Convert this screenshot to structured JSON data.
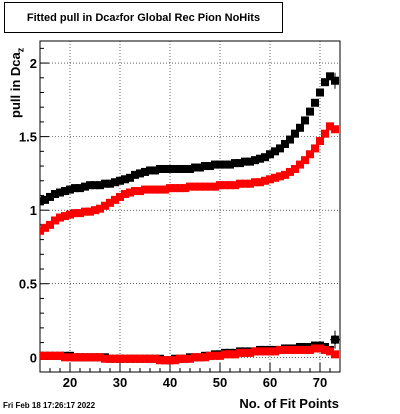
{
  "chart_data": {
    "type": "scatter",
    "title_main": "Fitted pull in Dca",
    "title_sub": "z",
    "title_rest": " for Global Rec Pion NoHits",
    "ylabel_main": "pull in Dca",
    "ylabel_sub": "z",
    "xlabel": "No. of Fit Points",
    "timestamp": "Fri Feb 18 17:26:17 2022",
    "xlim": [
      14,
      74
    ],
    "ylim": [
      -0.1,
      2.15
    ],
    "x_ticks": [
      20,
      30,
      40,
      50,
      60,
      70
    ],
    "y_ticks": [
      0,
      0.5,
      1,
      1.5,
      2
    ],
    "y_tick_labels": [
      "0",
      "0.5",
      "1",
      "1.5",
      "2"
    ],
    "grid": true,
    "series_style": [
      {
        "color": "#000000"
      },
      {
        "color": "#ff0000"
      },
      {
        "color": "#000000"
      },
      {
        "color": "#ff0000"
      }
    ],
    "x": [
      14,
      15,
      16,
      17,
      18,
      19,
      20,
      21,
      22,
      23,
      24,
      25,
      26,
      27,
      28,
      29,
      30,
      31,
      32,
      33,
      34,
      35,
      36,
      37,
      38,
      39,
      40,
      41,
      42,
      43,
      44,
      45,
      46,
      47,
      48,
      49,
      50,
      51,
      52,
      53,
      54,
      55,
      56,
      57,
      58,
      59,
      60,
      61,
      62,
      63,
      64,
      65,
      66,
      67,
      68,
      69,
      70,
      71,
      72,
      73
    ],
    "series": [
      {
        "values": [
          1.06,
          1.07,
          1.09,
          1.11,
          1.12,
          1.13,
          1.14,
          1.15,
          1.15,
          1.16,
          1.17,
          1.17,
          1.17,
          1.18,
          1.18,
          1.19,
          1.2,
          1.21,
          1.22,
          1.24,
          1.25,
          1.26,
          1.27,
          1.27,
          1.28,
          1.28,
          1.28,
          1.28,
          1.28,
          1.28,
          1.28,
          1.29,
          1.29,
          1.3,
          1.3,
          1.31,
          1.31,
          1.31,
          1.31,
          1.32,
          1.32,
          1.33,
          1.33,
          1.34,
          1.35,
          1.36,
          1.38,
          1.4,
          1.42,
          1.45,
          1.48,
          1.52,
          1.56,
          1.61,
          1.67,
          1.73,
          1.8,
          1.87,
          1.91,
          1.88
        ]
      },
      {
        "values": [
          0.86,
          0.88,
          0.9,
          0.93,
          0.95,
          0.96,
          0.97,
          0.98,
          0.98,
          0.99,
          0.99,
          1.0,
          1.01,
          1.03,
          1.05,
          1.07,
          1.09,
          1.11,
          1.12,
          1.13,
          1.13,
          1.14,
          1.14,
          1.14,
          1.14,
          1.14,
          1.15,
          1.15,
          1.15,
          1.15,
          1.16,
          1.16,
          1.16,
          1.16,
          1.16,
          1.16,
          1.17,
          1.17,
          1.17,
          1.17,
          1.18,
          1.18,
          1.18,
          1.19,
          1.19,
          1.2,
          1.21,
          1.22,
          1.23,
          1.24,
          1.26,
          1.28,
          1.31,
          1.34,
          1.38,
          1.42,
          1.47,
          1.52,
          1.57,
          1.55
        ]
      },
      {
        "values": [
          0.01,
          0.01,
          0.01,
          0.01,
          0.01,
          0.01,
          0.01,
          0.0,
          0.0,
          0.0,
          0.0,
          0.0,
          0.0,
          0.0,
          -0.01,
          -0.01,
          -0.01,
          -0.01,
          -0.01,
          -0.01,
          -0.01,
          -0.01,
          -0.01,
          -0.01,
          -0.01,
          -0.02,
          -0.02,
          -0.01,
          -0.01,
          -0.01,
          0.0,
          0.0,
          0.0,
          0.01,
          0.01,
          0.02,
          0.02,
          0.03,
          0.03,
          0.03,
          0.04,
          0.04,
          0.04,
          0.04,
          0.05,
          0.05,
          0.05,
          0.05,
          0.05,
          0.06,
          0.06,
          0.06,
          0.07,
          0.07,
          0.07,
          0.08,
          0.08,
          0.07,
          0.05,
          0.12
        ]
      },
      {
        "values": [
          0.01,
          0.01,
          0.01,
          0.01,
          0.01,
          0.0,
          0.0,
          0.0,
          0.0,
          0.0,
          0.0,
          0.0,
          0.0,
          -0.01,
          -0.01,
          -0.01,
          -0.01,
          -0.01,
          -0.01,
          -0.01,
          -0.01,
          -0.01,
          -0.01,
          -0.01,
          -0.02,
          -0.02,
          -0.02,
          -0.02,
          -0.01,
          -0.01,
          -0.01,
          0.0,
          0.0,
          0.0,
          0.01,
          0.01,
          0.01,
          0.02,
          0.02,
          0.02,
          0.03,
          0.03,
          0.03,
          0.04,
          0.04,
          0.04,
          0.04,
          0.04,
          0.05,
          0.05,
          0.05,
          0.05,
          0.05,
          0.05,
          0.05,
          0.06,
          0.06,
          0.05,
          0.04,
          0.02
        ]
      }
    ]
  }
}
